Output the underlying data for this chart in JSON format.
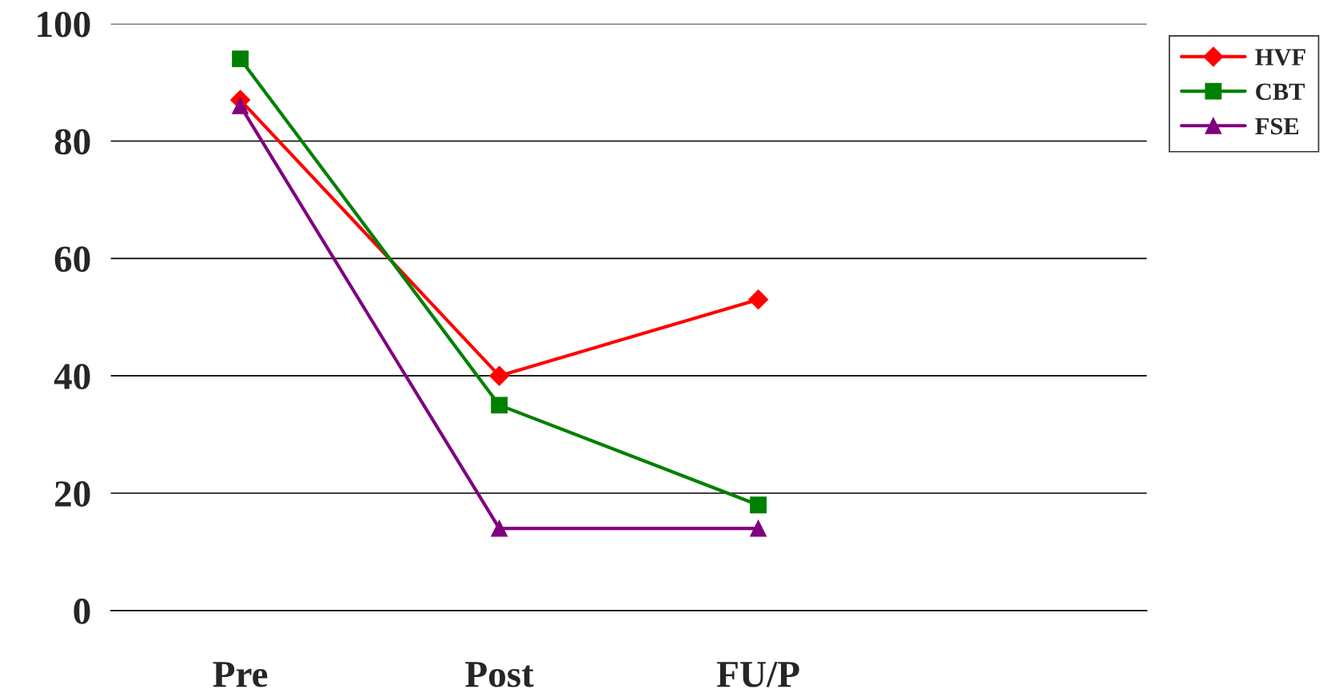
{
  "chart_data": {
    "type": "line",
    "categories": [
      "Pre",
      "Post",
      "FU/P",
      null
    ],
    "series": [
      {
        "name": "HVF",
        "color": "#ff0000",
        "marker": "diamond",
        "values": [
          87,
          40,
          53,
          null
        ]
      },
      {
        "name": "CBT",
        "color": "#008000",
        "marker": "square",
        "values": [
          94,
          35,
          18,
          null
        ]
      },
      {
        "name": "FSE",
        "color": "#800080",
        "marker": "triangle",
        "values": [
          86,
          14,
          14,
          null
        ]
      }
    ],
    "ylim": [
      0,
      100
    ],
    "yticks": [
      0,
      20,
      40,
      60,
      80,
      100
    ],
    "grid": "y",
    "legend": "top right"
  }
}
